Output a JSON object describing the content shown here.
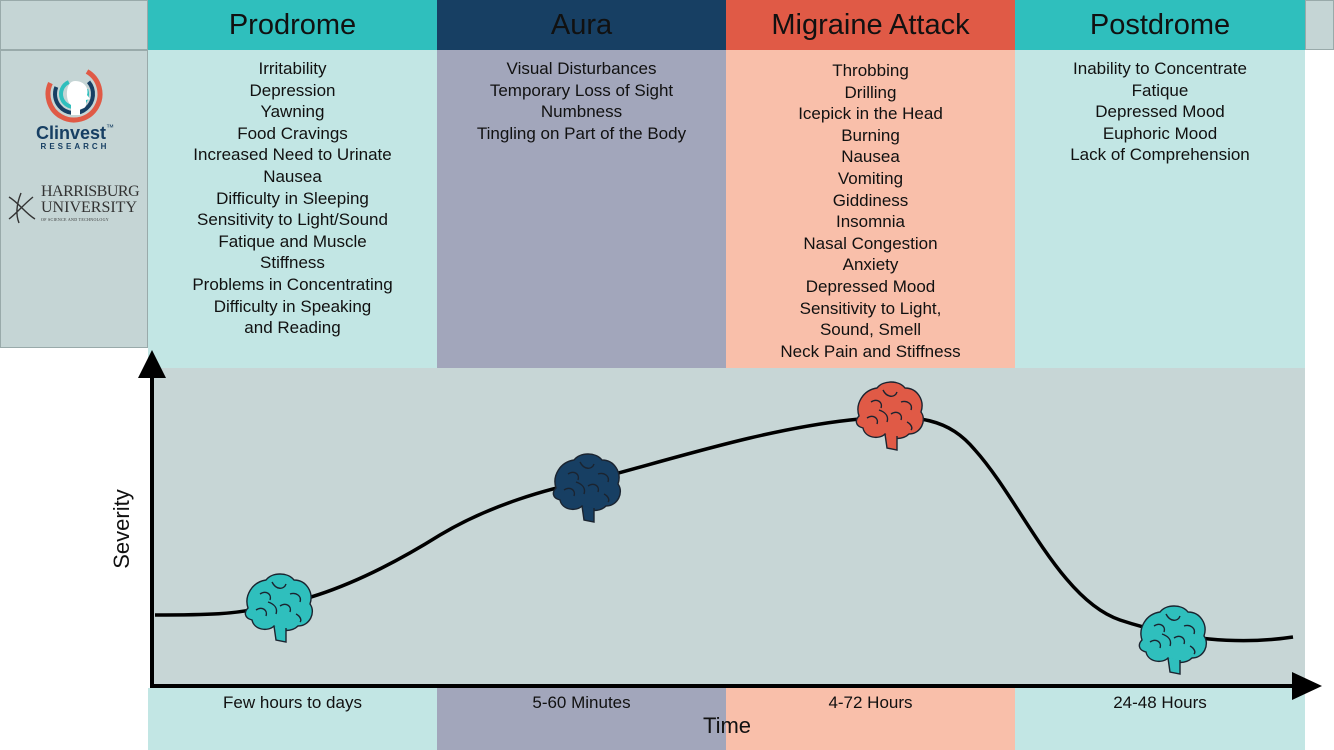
{
  "phases": [
    {
      "title": "Prodrome",
      "duration": "Few hours to days",
      "symptoms": [
        "Irritability",
        "Depression",
        "Yawning",
        "Food Cravings",
        "Increased Need to Urinate",
        "Nausea",
        "Difficulty in Sleeping",
        "Sensitivity to Light/Sound",
        "Fatique and Muscle",
        "Stiffness",
        "Problems in Concentrating",
        "Difficulty in Speaking",
        "and Reading"
      ]
    },
    {
      "title": "Aura",
      "duration": "5-60 Minutes",
      "symptoms": [
        "Visual Disturbances",
        "Temporary Loss of Sight",
        "Numbness",
        "Tingling on Part of the Body"
      ]
    },
    {
      "title": "Migraine Attack",
      "duration": "4-72 Hours",
      "symptoms": [
        "Throbbing",
        "Drilling",
        "Icepick in the Head",
        "Burning",
        "Nausea",
        "Vomiting",
        "Giddiness",
        "Insomnia",
        "Nasal Congestion",
        "Anxiety",
        "Depressed Mood",
        "Sensitivity to Light,",
        "Sound, Smell",
        "Neck Pain and Stiffness"
      ]
    },
    {
      "title": "Postdrome",
      "duration": "24-48 Hours",
      "symptoms": [
        "Inability to Concentrate",
        "Fatique",
        "Depressed Mood",
        "Euphoric Mood",
        "Lack of Comprehension"
      ]
    }
  ],
  "axes": {
    "x_label": "Time",
    "y_label": "Severity"
  },
  "logos": {
    "clinvest_name": "Clinvest",
    "clinvest_tm": "™",
    "clinvest_sub": "RESEARCH",
    "harrisburg_line1": "HARRISBURG",
    "harrisburg_line2": "UNIVERSITY",
    "harrisburg_sub": "OF SCIENCE AND TECHNOLOGY"
  },
  "colors": {
    "prodrome_header": "#2fbfbd",
    "prodrome_body": "#c2e6e4",
    "aura_header": "#173f63",
    "aura_body": "#a2a6bb",
    "attack_header": "#e05a46",
    "attack_body": "#f9bfaa",
    "postdrome_header": "#2fbfbd",
    "postdrome_body": "#c2e6e4",
    "plot_bg": "#c7d6d6"
  },
  "icons": [
    "brain-icon-teal",
    "brain-icon-navy",
    "brain-icon-red",
    "brain-icon-teal"
  ]
}
